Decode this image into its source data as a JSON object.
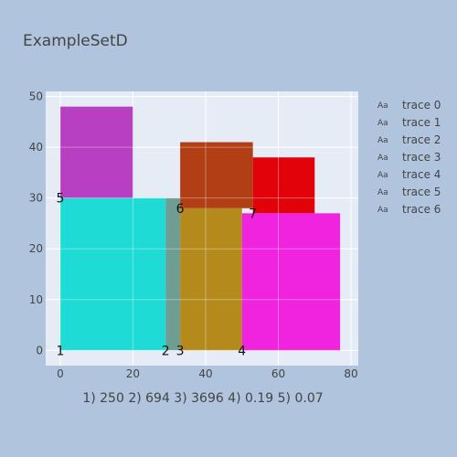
{
  "chart_data": {
    "type": "bar",
    "title": "ExampleSetD",
    "subtitle": "1) 250 2) 694 3) 3696 4) 0.19 5) 0.07",
    "xlim": [
      -4,
      82
    ],
    "ylim": [
      -3,
      51
    ],
    "xticks": [
      0,
      20,
      40,
      60,
      80
    ],
    "yticks": [
      0,
      10,
      20,
      30,
      40,
      50
    ],
    "grid": true,
    "legend_position": "right",
    "traces": [
      {
        "name": "trace 0",
        "x0": 0,
        "x1": 29,
        "y0": 0,
        "y1": 30,
        "color": "#1fdbd6"
      },
      {
        "name": "trace 1",
        "x0": 29,
        "x1": 33,
        "y0": 0,
        "y1": 30,
        "color": "#6e9e93"
      },
      {
        "name": "trace 2",
        "x0": 33,
        "x1": 50,
        "y0": 0,
        "y1": 28,
        "color": "#b48a1c"
      },
      {
        "name": "trace 3",
        "x0": 50,
        "x1": 77,
        "y0": 0,
        "y1": 27,
        "color": "#f023de"
      },
      {
        "name": "trace 4",
        "x0": 0,
        "x1": 20,
        "y0": 30,
        "y1": 48,
        "color": "#b63fc2"
      },
      {
        "name": "trace 5",
        "x0": 33,
        "x1": 53,
        "y0": 28,
        "y1": 41,
        "color": "#b23e16"
      },
      {
        "name": "trace 6",
        "x0": 53,
        "x1": 70,
        "y0": 27,
        "y1": 38,
        "color": "#e2030a"
      }
    ],
    "point_labels": [
      {
        "text": "1",
        "x": 0,
        "y": 0
      },
      {
        "text": "2",
        "x": 29,
        "y": 0
      },
      {
        "text": "3",
        "x": 33,
        "y": 0
      },
      {
        "text": "4",
        "x": 50,
        "y": 0
      },
      {
        "text": "5",
        "x": 0,
        "y": 30
      },
      {
        "text": "6",
        "x": 33,
        "y": 28
      },
      {
        "text": "7",
        "x": 53,
        "y": 27
      }
    ],
    "legend_symbol": "Aa"
  },
  "colors": {
    "paper": "#b0c4de",
    "plot": "#e5ecf6",
    "grid": "#ffffff"
  }
}
